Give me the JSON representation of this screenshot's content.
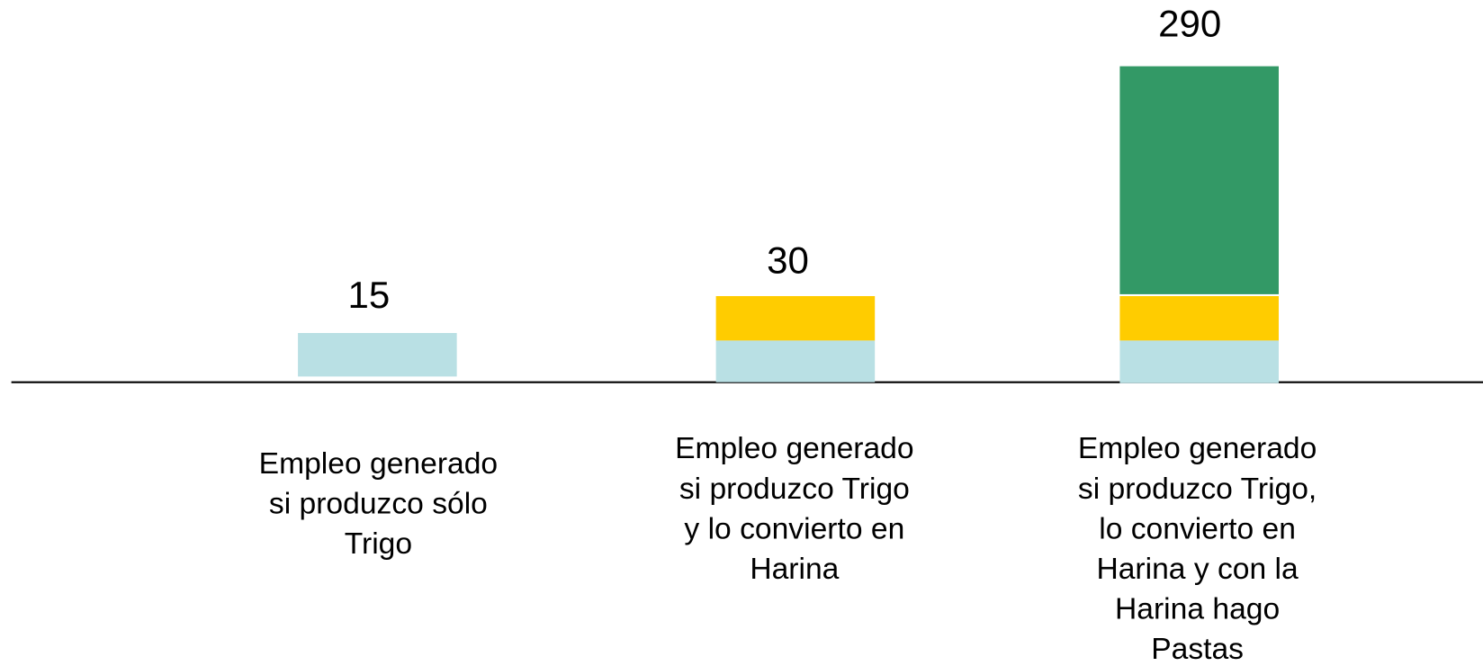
{
  "bars": [
    {
      "total": 15,
      "label": [
        "Empleo generado",
        "si produzco sólo",
        "Trigo"
      ]
    },
    {
      "total": 30,
      "label": [
        "Empleo generado",
        "si produzco Trigo",
        "y lo convierto en",
        "Harina"
      ]
    },
    {
      "total": 290,
      "label": [
        "Empleo generado",
        "si produzco Trigo,",
        "lo convierto en",
        "Harina y con la",
        "Harina hago",
        "Pastas"
      ]
    }
  ]
}
